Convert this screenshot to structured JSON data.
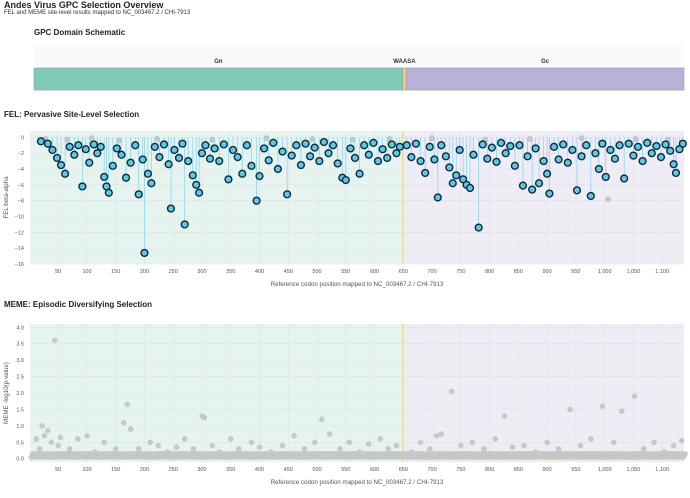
{
  "header": {
    "title": "Andes Virus GPC Selection Overview",
    "subtitle": "FEL and MEME site-level results mapped to NC_003467.2 / CHI-7913"
  },
  "colors": {
    "gn": "#7ecbb7",
    "gc": "#bbb0d8",
    "waasa": "#f2d16b",
    "fel_point": "#5ec8e8",
    "fel_point_edge": "#0b2a3a",
    "nonsig_point": "#c8c8c8",
    "gn_bg": "#e6f4ef",
    "gc_bg": "#eeecf5",
    "grid": "#e2e2e2",
    "boundary_line": "#f2d16b"
  },
  "chart_data": [
    {
      "id": "domain-schematic",
      "type": "bar",
      "title": "GPC Domain Schematic",
      "domains": [
        {
          "name": "Gn",
          "start": 1,
          "end": 646
        },
        {
          "name": "WAASA",
          "start": 646,
          "end": 652
        },
        {
          "name": "Gc",
          "start": 652,
          "end": 1138
        }
      ],
      "xlim": [
        1,
        1138
      ]
    },
    {
      "id": "fel",
      "type": "scatter",
      "title": "FEL: Pervasive Site-Level Selection",
      "xlabel": "Reference codon position mapped to NC_003467.2 / CHI-7913",
      "ylabel": "FEL beta-alpha",
      "xlim": [
        1,
        1138
      ],
      "ylim": [
        -16,
        0.8
      ],
      "xticks": [
        50,
        100,
        150,
        200,
        250,
        300,
        350,
        400,
        450,
        500,
        550,
        600,
        650,
        700,
        750,
        800,
        850,
        900,
        950,
        1000,
        1050,
        1100
      ],
      "xtick_labels": [
        "50",
        "100",
        "150",
        "200",
        "250",
        "300",
        "350",
        "400",
        "450",
        "500",
        "550",
        "600",
        "650",
        "700",
        "750",
        "800",
        "850",
        "900",
        "950",
        "1,000",
        "1,050",
        "1,100"
      ],
      "yticks": [
        0,
        -2,
        -4,
        -6,
        -8,
        -10,
        -12,
        -14,
        -16
      ],
      "ytick_labels": [
        "0",
        "−2",
        "−4",
        "−6",
        "−8",
        "−10",
        "−12",
        "−14",
        "−16"
      ],
      "domain_boundary": 649,
      "significant": [
        {
          "x": 20,
          "y": -0.5
        },
        {
          "x": 32,
          "y": -0.8
        },
        {
          "x": 40,
          "y": -1.6
        },
        {
          "x": 48,
          "y": -2.6
        },
        {
          "x": 55,
          "y": -3.5
        },
        {
          "x": 62,
          "y": -4.6
        },
        {
          "x": 70,
          "y": -1.2
        },
        {
          "x": 78,
          "y": -2.2
        },
        {
          "x": 85,
          "y": -1.0
        },
        {
          "x": 92,
          "y": -6.2
        },
        {
          "x": 98,
          "y": -1.5
        },
        {
          "x": 104,
          "y": -3.2
        },
        {
          "x": 112,
          "y": -0.9
        },
        {
          "x": 118,
          "y": -2.0
        },
        {
          "x": 124,
          "y": -1.2
        },
        {
          "x": 130,
          "y": -5.0
        },
        {
          "x": 134,
          "y": -6.2
        },
        {
          "x": 138,
          "y": -7.0
        },
        {
          "x": 145,
          "y": -3.6
        },
        {
          "x": 152,
          "y": -1.4
        },
        {
          "x": 160,
          "y": -2.2
        },
        {
          "x": 168,
          "y": -5.1
        },
        {
          "x": 176,
          "y": -3.2
        },
        {
          "x": 184,
          "y": -1.0
        },
        {
          "x": 190,
          "y": -7.2
        },
        {
          "x": 197,
          "y": -2.8
        },
        {
          "x": 200,
          "y": -14.6
        },
        {
          "x": 206,
          "y": -4.6
        },
        {
          "x": 212,
          "y": -5.8
        },
        {
          "x": 218,
          "y": -1.2
        },
        {
          "x": 226,
          "y": -2.5
        },
        {
          "x": 234,
          "y": -0.9
        },
        {
          "x": 242,
          "y": -3.4
        },
        {
          "x": 246,
          "y": -9.0
        },
        {
          "x": 252,
          "y": -1.6
        },
        {
          "x": 260,
          "y": -2.6
        },
        {
          "x": 266,
          "y": -0.8
        },
        {
          "x": 270,
          "y": -11.0
        },
        {
          "x": 276,
          "y": -3.0
        },
        {
          "x": 284,
          "y": -4.8
        },
        {
          "x": 290,
          "y": -6.0
        },
        {
          "x": 295,
          "y": -7.0
        },
        {
          "x": 300,
          "y": -2.0
        },
        {
          "x": 306,
          "y": -1.0
        },
        {
          "x": 314,
          "y": -2.7
        },
        {
          "x": 322,
          "y": -1.4
        },
        {
          "x": 330,
          "y": -3.0
        },
        {
          "x": 338,
          "y": -0.9
        },
        {
          "x": 346,
          "y": -5.3
        },
        {
          "x": 354,
          "y": -1.6
        },
        {
          "x": 362,
          "y": -2.5
        },
        {
          "x": 370,
          "y": -4.6
        },
        {
          "x": 378,
          "y": -1.0
        },
        {
          "x": 386,
          "y": -3.6
        },
        {
          "x": 395,
          "y": -8.0
        },
        {
          "x": 400,
          "y": -4.9
        },
        {
          "x": 408,
          "y": -1.4
        },
        {
          "x": 416,
          "y": -2.9
        },
        {
          "x": 424,
          "y": -0.7
        },
        {
          "x": 432,
          "y": -4.0
        },
        {
          "x": 440,
          "y": -1.8
        },
        {
          "x": 448,
          "y": -7.2
        },
        {
          "x": 456,
          "y": -2.3
        },
        {
          "x": 464,
          "y": -1.0
        },
        {
          "x": 472,
          "y": -3.5
        },
        {
          "x": 480,
          "y": -0.8
        },
        {
          "x": 488,
          "y": -2.4
        },
        {
          "x": 496,
          "y": -1.3
        },
        {
          "x": 504,
          "y": -3.0
        },
        {
          "x": 512,
          "y": -0.6
        },
        {
          "x": 520,
          "y": -2.0
        },
        {
          "x": 528,
          "y": -1.0
        },
        {
          "x": 536,
          "y": -3.3
        },
        {
          "x": 544,
          "y": -5.1
        },
        {
          "x": 550,
          "y": -5.4
        },
        {
          "x": 558,
          "y": -1.4
        },
        {
          "x": 566,
          "y": -2.6
        },
        {
          "x": 574,
          "y": -4.6
        },
        {
          "x": 582,
          "y": -1.0
        },
        {
          "x": 590,
          "y": -2.2
        },
        {
          "x": 598,
          "y": -0.7
        },
        {
          "x": 606,
          "y": -3.0
        },
        {
          "x": 614,
          "y": -1.5
        },
        {
          "x": 622,
          "y": -2.6
        },
        {
          "x": 630,
          "y": -0.9
        },
        {
          "x": 638,
          "y": -2.0
        },
        {
          "x": 644,
          "y": -1.2
        },
        {
          "x": 656,
          "y": -1.0
        },
        {
          "x": 664,
          "y": -2.5
        },
        {
          "x": 672,
          "y": -0.8
        },
        {
          "x": 680,
          "y": -3.0
        },
        {
          "x": 688,
          "y": -4.5
        },
        {
          "x": 696,
          "y": -1.2
        },
        {
          "x": 704,
          "y": -2.8
        },
        {
          "x": 710,
          "y": -7.6
        },
        {
          "x": 716,
          "y": -1.0
        },
        {
          "x": 724,
          "y": -2.4
        },
        {
          "x": 730,
          "y": -3.8
        },
        {
          "x": 736,
          "y": -5.8
        },
        {
          "x": 742,
          "y": -4.8
        },
        {
          "x": 748,
          "y": -1.6
        },
        {
          "x": 754,
          "y": -5.3
        },
        {
          "x": 760,
          "y": -6.0
        },
        {
          "x": 766,
          "y": -6.4
        },
        {
          "x": 772,
          "y": -2.2
        },
        {
          "x": 781,
          "y": -11.4
        },
        {
          "x": 788,
          "y": -0.9
        },
        {
          "x": 796,
          "y": -2.7
        },
        {
          "x": 804,
          "y": -1.3
        },
        {
          "x": 812,
          "y": -3.1
        },
        {
          "x": 820,
          "y": -0.7
        },
        {
          "x": 828,
          "y": -2.0
        },
        {
          "x": 836,
          "y": -1.1
        },
        {
          "x": 844,
          "y": -3.6
        },
        {
          "x": 852,
          "y": -1.0
        },
        {
          "x": 858,
          "y": -6.1
        },
        {
          "x": 866,
          "y": -2.4
        },
        {
          "x": 874,
          "y": -6.6
        },
        {
          "x": 880,
          "y": -1.4
        },
        {
          "x": 886,
          "y": -5.8
        },
        {
          "x": 894,
          "y": -3.0
        },
        {
          "x": 900,
          "y": -4.6
        },
        {
          "x": 904,
          "y": -7.1
        },
        {
          "x": 912,
          "y": -1.2
        },
        {
          "x": 920,
          "y": -2.8
        },
        {
          "x": 928,
          "y": -0.9
        },
        {
          "x": 936,
          "y": -3.2
        },
        {
          "x": 944,
          "y": -1.6
        },
        {
          "x": 952,
          "y": -6.7
        },
        {
          "x": 960,
          "y": -2.4
        },
        {
          "x": 968,
          "y": -1.0
        },
        {
          "x": 976,
          "y": -7.4
        },
        {
          "x": 984,
          "y": -2.0
        },
        {
          "x": 990,
          "y": -4.0
        },
        {
          "x": 996,
          "y": -0.8
        },
        {
          "x": 1002,
          "y": -5.0
        },
        {
          "x": 1010,
          "y": -1.6
        },
        {
          "x": 1018,
          "y": -2.7
        },
        {
          "x": 1026,
          "y": -1.0
        },
        {
          "x": 1034,
          "y": -5.2
        },
        {
          "x": 1042,
          "y": -0.8
        },
        {
          "x": 1050,
          "y": -2.3
        },
        {
          "x": 1058,
          "y": -1.2
        },
        {
          "x": 1066,
          "y": -3.0
        },
        {
          "x": 1074,
          "y": -0.7
        },
        {
          "x": 1082,
          "y": -2.0
        },
        {
          "x": 1090,
          "y": -1.1
        },
        {
          "x": 1098,
          "y": -2.5
        },
        {
          "x": 1106,
          "y": -0.9
        },
        {
          "x": 1114,
          "y": -1.7
        },
        {
          "x": 1120,
          "y": -3.4
        },
        {
          "x": 1124,
          "y": -4.5
        },
        {
          "x": 1130,
          "y": -1.5
        },
        {
          "x": 1136,
          "y": -0.8
        }
      ],
      "nonsignificant": [
        {
          "x": 28,
          "y": -0.2
        },
        {
          "x": 66,
          "y": -0.3
        },
        {
          "x": 108,
          "y": -0.1
        },
        {
          "x": 156,
          "y": -0.4
        },
        {
          "x": 222,
          "y": -0.2
        },
        {
          "x": 318,
          "y": -0.3
        },
        {
          "x": 412,
          "y": -0.1
        },
        {
          "x": 492,
          "y": -0.2
        },
        {
          "x": 562,
          "y": -0.3
        },
        {
          "x": 626,
          "y": -0.2
        },
        {
          "x": 700,
          "y": -0.1
        },
        {
          "x": 792,
          "y": -0.3
        },
        {
          "x": 870,
          "y": -0.2
        },
        {
          "x": 960,
          "y": -0.1
        },
        {
          "x": 1006,
          "y": -7.8
        },
        {
          "x": 1054,
          "y": -0.2
        },
        {
          "x": 1110,
          "y": -0.3
        }
      ]
    },
    {
      "id": "meme",
      "type": "scatter",
      "title": "MEME: Episodic Diversifying Selection",
      "xlabel": "Reference codon position mapped to NC_003467.2 / CHI-7913",
      "ylabel": "MEME -log10(p-value)",
      "xlim": [
        1,
        1138
      ],
      "ylim": [
        -0.1,
        4.1
      ],
      "xticks": [
        50,
        100,
        150,
        200,
        250,
        300,
        350,
        400,
        450,
        500,
        550,
        600,
        650,
        700,
        750,
        800,
        850,
        900,
        950,
        1000,
        1050,
        1100
      ],
      "xtick_labels": [
        "50",
        "100",
        "150",
        "200",
        "250",
        "300",
        "350",
        "400",
        "450",
        "500",
        "550",
        "600",
        "650",
        "700",
        "750",
        "800",
        "850",
        "900",
        "950",
        "1,000",
        "1,050",
        "1,100"
      ],
      "yticks": [
        0,
        0.5,
        1,
        1.5,
        2,
        2.5,
        3,
        3.5,
        4
      ],
      "ytick_labels": [
        "0.0",
        "0.5",
        "1.0",
        "1.5",
        "2.0",
        "2.5",
        "3.0",
        "3.5",
        "4.0"
      ],
      "domain_boundary": 649,
      "points": [
        {
          "x": 12,
          "y": 0.6
        },
        {
          "x": 18,
          "y": 0.3
        },
        {
          "x": 22,
          "y": 1.0
        },
        {
          "x": 26,
          "y": 0.7
        },
        {
          "x": 32,
          "y": 0.85
        },
        {
          "x": 38,
          "y": 0.5
        },
        {
          "x": 44,
          "y": 3.6
        },
        {
          "x": 50,
          "y": 0.4
        },
        {
          "x": 54,
          "y": 0.65
        },
        {
          "x": 70,
          "y": 0.3
        },
        {
          "x": 84,
          "y": 0.6
        },
        {
          "x": 100,
          "y": 0.7
        },
        {
          "x": 114,
          "y": 0.2
        },
        {
          "x": 130,
          "y": 0.5
        },
        {
          "x": 150,
          "y": 0.3
        },
        {
          "x": 164,
          "y": 1.1
        },
        {
          "x": 170,
          "y": 1.65
        },
        {
          "x": 176,
          "y": 0.9
        },
        {
          "x": 190,
          "y": 0.3
        },
        {
          "x": 210,
          "y": 0.5
        },
        {
          "x": 224,
          "y": 0.4
        },
        {
          "x": 240,
          "y": 0.2
        },
        {
          "x": 256,
          "y": 0.35
        },
        {
          "x": 270,
          "y": 0.6
        },
        {
          "x": 285,
          "y": 0.3
        },
        {
          "x": 300,
          "y": 1.3
        },
        {
          "x": 304,
          "y": 1.25
        },
        {
          "x": 318,
          "y": 0.4
        },
        {
          "x": 330,
          "y": 0.2
        },
        {
          "x": 350,
          "y": 0.6
        },
        {
          "x": 364,
          "y": 0.3
        },
        {
          "x": 386,
          "y": 0.5
        },
        {
          "x": 400,
          "y": 0.35
        },
        {
          "x": 420,
          "y": 0.2
        },
        {
          "x": 440,
          "y": 0.4
        },
        {
          "x": 460,
          "y": 0.7
        },
        {
          "x": 478,
          "y": 0.3
        },
        {
          "x": 496,
          "y": 0.5
        },
        {
          "x": 508,
          "y": 1.2
        },
        {
          "x": 522,
          "y": 0.75
        },
        {
          "x": 540,
          "y": 0.3
        },
        {
          "x": 556,
          "y": 0.5
        },
        {
          "x": 574,
          "y": 0.2
        },
        {
          "x": 590,
          "y": 0.45
        },
        {
          "x": 610,
          "y": 0.6
        },
        {
          "x": 624,
          "y": 0.3
        },
        {
          "x": 638,
          "y": 0.4
        },
        {
          "x": 664,
          "y": 0.2
        },
        {
          "x": 680,
          "y": 0.5
        },
        {
          "x": 696,
          "y": 0.3
        },
        {
          "x": 708,
          "y": 0.7
        },
        {
          "x": 716,
          "y": 0.75
        },
        {
          "x": 734,
          "y": 2.05
        },
        {
          "x": 750,
          "y": 0.4
        },
        {
          "x": 770,
          "y": 0.5
        },
        {
          "x": 790,
          "y": 0.3
        },
        {
          "x": 810,
          "y": 0.6
        },
        {
          "x": 826,
          "y": 1.3
        },
        {
          "x": 840,
          "y": 0.35
        },
        {
          "x": 860,
          "y": 0.4
        },
        {
          "x": 880,
          "y": 0.2
        },
        {
          "x": 900,
          "y": 0.5
        },
        {
          "x": 920,
          "y": 0.3
        },
        {
          "x": 940,
          "y": 1.5
        },
        {
          "x": 958,
          "y": 0.4
        },
        {
          "x": 976,
          "y": 0.6
        },
        {
          "x": 996,
          "y": 1.6
        },
        {
          "x": 1016,
          "y": 0.5
        },
        {
          "x": 1030,
          "y": 1.45
        },
        {
          "x": 1052,
          "y": 1.9
        },
        {
          "x": 1068,
          "y": 0.3
        },
        {
          "x": 1086,
          "y": 0.5
        },
        {
          "x": 1104,
          "y": 0.2
        },
        {
          "x": 1120,
          "y": 0.4
        },
        {
          "x": 1134,
          "y": 0.55
        }
      ],
      "baseline_values": [
        0.05,
        0.15
      ]
    }
  ]
}
